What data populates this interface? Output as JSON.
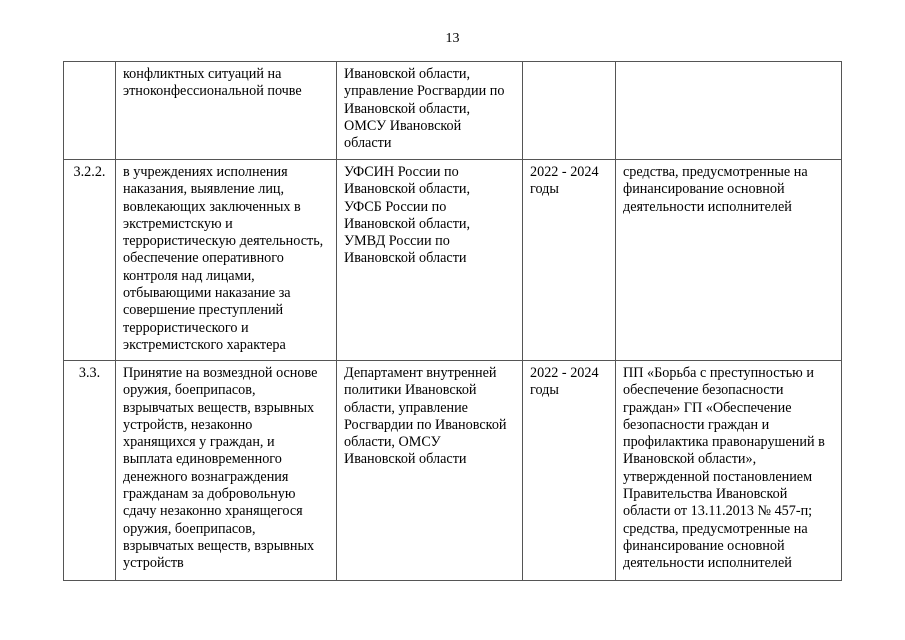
{
  "page_number": "13",
  "rows": [
    {
      "num": "",
      "description": "конфликтных ситуаций на\nэтноконфессиональной почве",
      "executors": "Ивановской области,\nуправление Росгвардии по\nИвановской области,\nОМСУ Ивановской\nобласти",
      "period": "",
      "funding": ""
    },
    {
      "num": "3.2.2.",
      "description": "в учреждениях исполнения\nнаказания, выявление лиц,\nвовлекающих заключенных в\nэкстремистскую и\nтеррористическую деятельность,\nобеспечение оперативного\nконтроля над лицами,\nотбывающими наказание за\nсовершение преступлений\nтеррористического и\nэкстремистского характера",
      "executors": "УФСИН России по\nИвановской области,\nУФСБ России по\nИвановской области,\nУМВД России по\nИвановской области",
      "period": "2022 - 2024\nгоды",
      "funding": "средства, предусмотренные на\nфинансирование основной\nдеятельности исполнителей"
    },
    {
      "num": "3.3.",
      "description": "Принятие на возмездной основе\nоружия, боеприпасов,\nвзрывчатых веществ, взрывных\nустройств, незаконно\nхранящихся у граждан, и\nвыплата единовременного\nденежного вознаграждения\nгражданам за добровольную\nсдачу незаконно хранящегося\nоружия, боеприпасов,\nвзрывчатых веществ, взрывных\nустройств",
      "executors": "Департамент внутренней\nполитики Ивановской\nобласти, управление\nРосгвардии по Ивановской\nобласти, ОМСУ\nИвановской области",
      "period": "2022 - 2024\nгоды",
      "funding": "ПП «Борьба с преступностью  и\nобеспечение безопасности\nграждан» ГП «Обеспечение\nбезопасности граждан и\nпрофилактика правонарушений в\nИвановской области»,\nутвержденной постановлением\nПравительства Ивановской\nобласти от 13.11.2013 № 457-п;\nсредства, предусмотренные на\nфинансирование основной\nдеятельности исполнителей"
    }
  ]
}
